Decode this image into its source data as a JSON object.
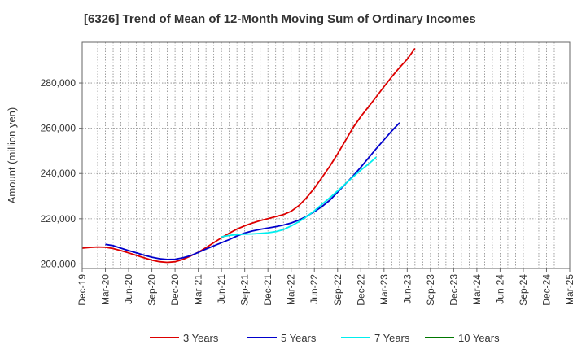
{
  "chart_data": {
    "type": "line",
    "title": "[6326]  Trend of Mean of 12-Month Moving Sum of Ordinary Incomes",
    "xlabel": "",
    "ylabel": "Amount (million yen)",
    "ylim": [
      198000,
      298000
    ],
    "y_ticks": [
      200000,
      220000,
      240000,
      260000,
      280000
    ],
    "y_tick_labels": [
      "200,000",
      "220,000",
      "240,000",
      "260,000",
      "280,000"
    ],
    "x_tick_labels": [
      "Dec-19",
      "Mar-20",
      "Jun-20",
      "Sep-20",
      "Dec-20",
      "Mar-21",
      "Jun-21",
      "Sep-21",
      "Dec-21",
      "Mar-22",
      "Jun-22",
      "Sep-22",
      "Dec-22",
      "Mar-23",
      "Jun-23",
      "Sep-23",
      "Dec-23",
      "Mar-24",
      "Jun-24",
      "Sep-24",
      "Dec-24",
      "Mar-25"
    ],
    "grid": true,
    "legend_position": "bottom",
    "series": [
      {
        "name": "3 Years",
        "color": "#dd0000",
        "start_index": 0,
        "values": [
          207000,
          207300,
          207500,
          207400,
          206800,
          205900,
          204900,
          203800,
          202700,
          201700,
          201000,
          200700,
          201000,
          202000,
          203500,
          205200,
          207200,
          209400,
          211600,
          213600,
          215400,
          216900,
          218100,
          219200,
          220000,
          220900,
          221800,
          223300,
          225800,
          229300,
          233500,
          238300,
          243300,
          248700,
          254500,
          260300,
          265200,
          269500,
          273900,
          278400,
          282700,
          286800,
          290500,
          295300
        ]
      },
      {
        "name": "5 Years",
        "color": "#0000cc",
        "start_index": 3,
        "values": [
          208700,
          208100,
          207000,
          205900,
          204900,
          203900,
          203000,
          202300,
          202000,
          202100,
          202700,
          203700,
          205100,
          206600,
          208000,
          209400,
          210800,
          212400,
          213700,
          214600,
          215300,
          215900,
          216500,
          217200,
          218100,
          219400,
          221100,
          223100,
          225400,
          228200,
          231700,
          235300,
          238900,
          242800,
          246900,
          251000,
          254900,
          258800,
          262400
        ]
      },
      {
        "name": "7 Years",
        "color": "#00eeee",
        "start_index": 18,
        "values": [
          212000,
          212600,
          213000,
          213200,
          213300,
          213500,
          213800,
          214300,
          215200,
          216800,
          218700,
          220900,
          223500,
          226400,
          229300,
          232300,
          235400,
          238500,
          241500,
          244200,
          247200
        ]
      },
      {
        "name": "10 Years",
        "color": "#007700",
        "start_index": 0,
        "values": []
      }
    ]
  }
}
